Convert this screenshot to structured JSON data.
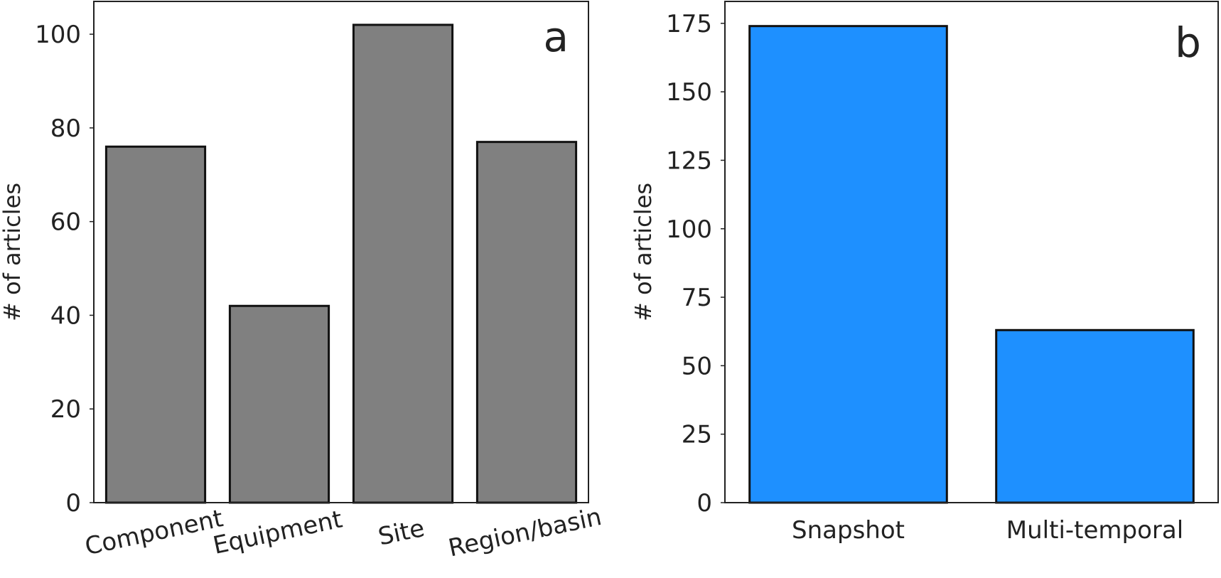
{
  "chart_data": [
    {
      "type": "bar",
      "panel_label": "a",
      "categories": [
        "Component",
        "Equipment",
        "Site",
        "Region/basin"
      ],
      "values": [
        76,
        42,
        102,
        77
      ],
      "bar_color": "#808080",
      "xlabel": "",
      "ylabel": "# of articles",
      "ylim": [
        0,
        107
      ],
      "yticks": [
        0,
        20,
        40,
        60,
        80,
        100
      ],
      "xtick_rotation_deg": -12,
      "grid": false
    },
    {
      "type": "bar",
      "panel_label": "b",
      "categories": [
        "Snapshot",
        "Multi-temporal"
      ],
      "values": [
        174,
        63
      ],
      "bar_color": "#1e90ff",
      "xlabel": "",
      "ylabel": "# of articles",
      "ylim": [
        0,
        183
      ],
      "yticks": [
        0,
        25,
        50,
        75,
        100,
        125,
        150,
        175
      ],
      "xtick_rotation_deg": 0,
      "grid": false
    }
  ]
}
